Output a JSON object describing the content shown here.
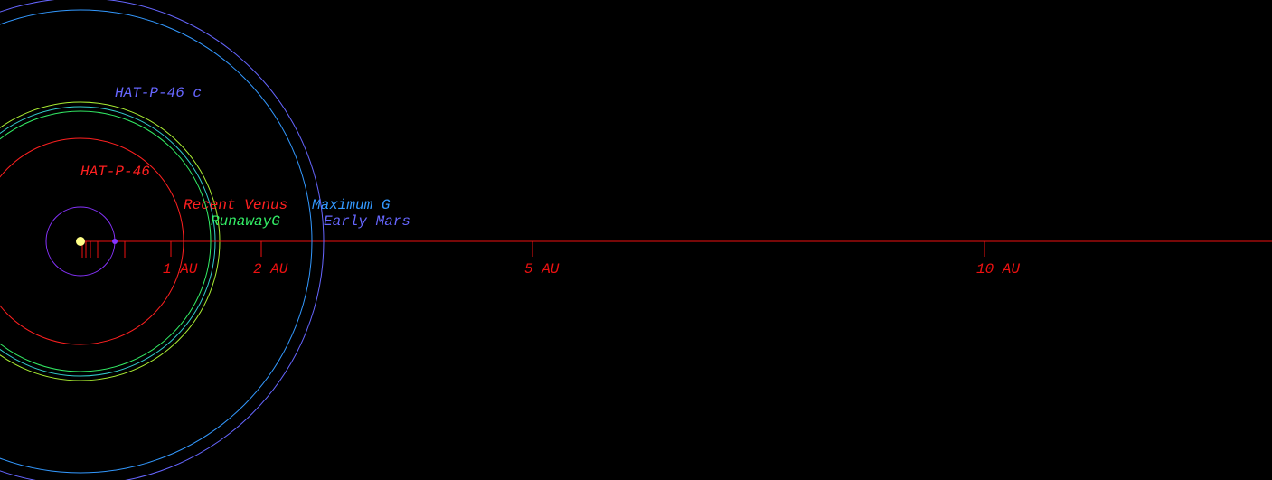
{
  "star": {
    "label": "HAT-P-46"
  },
  "planet": {
    "label": "HAT-P-46 c"
  },
  "zones": [
    {
      "name": "Recent Venus",
      "color": "#ff2020",
      "radius_au": 1.14
    },
    {
      "name": "RunawayG",
      "color": "#33ee66",
      "radius_au": 1.44
    },
    {
      "name": "Maximum G",
      "color": "#3399ff",
      "radius_au": 2.56
    },
    {
      "name": "Early Mars",
      "color": "#6666ff",
      "radius_au": 2.69
    }
  ],
  "axis": {
    "ticks": [
      {
        "value": 1,
        "label": "1 AU"
      },
      {
        "value": 2,
        "label": "2 AU"
      },
      {
        "value": 5,
        "label": "5 AU"
      },
      {
        "value": 10,
        "label": "10 AU"
      }
    ]
  }
}
